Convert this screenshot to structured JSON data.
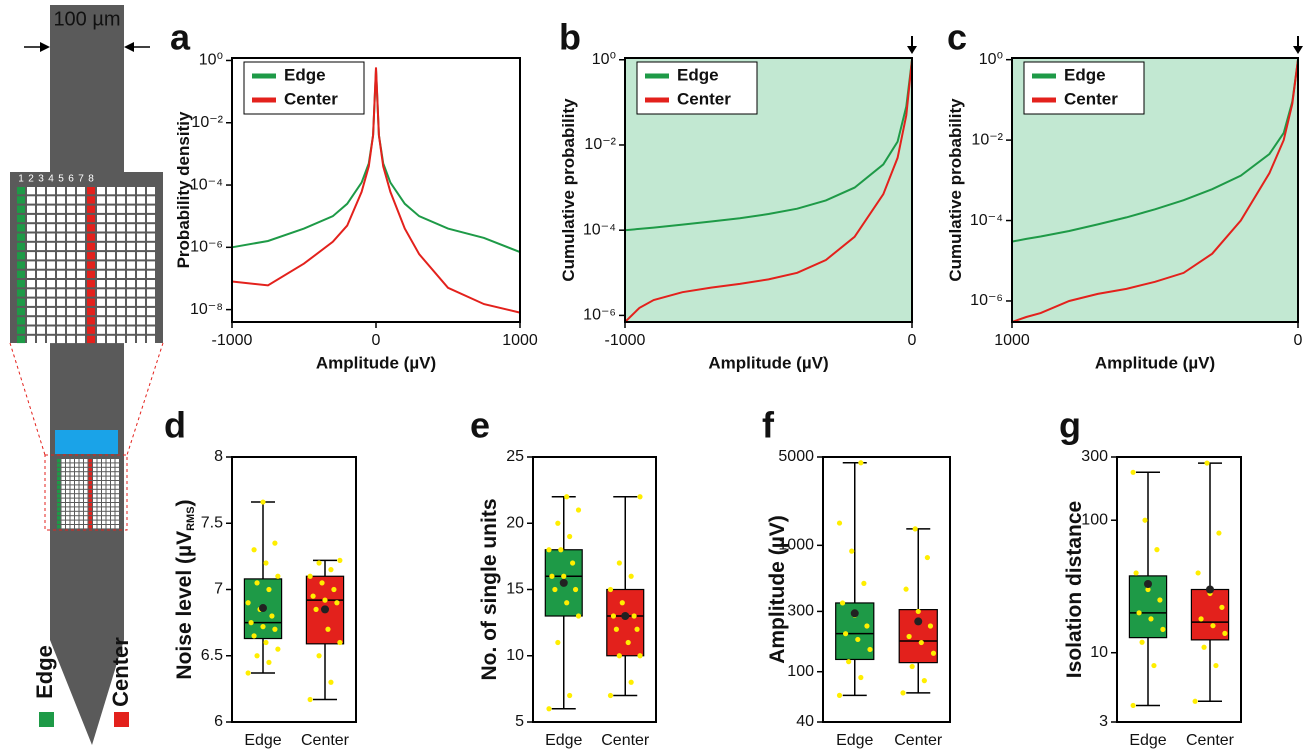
{
  "diagram": {
    "width_label": "100 µm",
    "columns": [
      "1",
      "2",
      "3",
      "4",
      "5",
      "6",
      "7",
      "8"
    ],
    "edge_label": "Edge",
    "center_label": "Center",
    "edge_color": "#1e9a47",
    "center_color": "#e3211c"
  },
  "chart_data": [
    {
      "type": "line",
      "panel": "a",
      "x_label": "Amplitude (µV)",
      "y_label": "Probability densitiy",
      "yscale": "log",
      "x": [
        -1000,
        -750,
        -500,
        -300,
        -200,
        -100,
        -50,
        -20,
        0,
        20,
        50,
        100,
        200,
        300,
        500,
        750,
        1000
      ],
      "series": [
        {
          "name": "Edge",
          "color": "#1e9a47",
          "values": [
            1e-06,
            1.6e-06,
            4e-06,
            1e-05,
            2.5e-05,
            0.00012,
            0.0005,
            0.004,
            0.5,
            0.004,
            0.0005,
            0.00012,
            2.5e-05,
            1e-05,
            4e-06,
            2e-06,
            7e-07
          ]
        },
        {
          "name": "Center",
          "color": "#e3211c",
          "values": [
            8e-08,
            6e-08,
            3e-07,
            1.5e-06,
            5e-06,
            6e-05,
            0.0004,
            0.004,
            0.6,
            0.004,
            0.0004,
            6e-05,
            4e-06,
            6e-07,
            5e-08,
            1.5e-08,
            8e-09
          ]
        }
      ],
      "xlim": [
        -1000,
        1000
      ],
      "xticks": [
        -1000,
        0,
        1000
      ],
      "ylim": [
        4e-09,
        1.2
      ],
      "yticks": [
        {
          "value": 1,
          "label": "10⁰"
        },
        {
          "value": 0.01,
          "label": "10⁻²"
        },
        {
          "value": 0.0001,
          "label": "10⁻⁴"
        },
        {
          "value": 1e-06,
          "label": "10⁻⁶"
        },
        {
          "value": 1e-08,
          "label": "10⁻⁸"
        }
      ]
    },
    {
      "type": "line",
      "panel": "b",
      "x_label": "Amplitude (µV)",
      "y_label": "Cumulative probability",
      "yscale": "log",
      "shade_color": "#c2e8d2",
      "x": [
        -1000,
        -950,
        -900,
        -800,
        -700,
        -600,
        -500,
        -400,
        -300,
        -200,
        -100,
        -50,
        -20,
        0
      ],
      "series": [
        {
          "name": "Edge",
          "color": "#1e9a47",
          "values": [
            0.0001,
            0.000107,
            0.000115,
            0.000135,
            0.00016,
            0.00019,
            0.00024,
            0.00032,
            0.0005,
            0.001,
            0.0035,
            0.012,
            0.08,
            1
          ]
        },
        {
          "name": "Center",
          "color": "#e3211c",
          "values": [
            7e-07,
            1.5e-06,
            2.3e-06,
            3.5e-06,
            4.5e-06,
            5.5e-06,
            7e-06,
            1e-05,
            2e-05,
            7e-05,
            0.0007,
            0.005,
            0.05,
            1
          ]
        }
      ],
      "xlim": [
        -1000,
        0
      ],
      "xticks": [
        -1000,
        0
      ],
      "ylim": [
        7e-07,
        1.1
      ],
      "yticks": [
        {
          "value": 1,
          "label": "10⁰"
        },
        {
          "value": 0.01,
          "label": "10⁻²"
        },
        {
          "value": 0.0001,
          "label": "10⁻⁴"
        },
        {
          "value": 1e-06,
          "label": "10⁻⁶"
        }
      ]
    },
    {
      "type": "line",
      "panel": "c",
      "x_label": "Amplitude (µV)",
      "y_label": "Cumulative probability",
      "yscale": "log",
      "shade_color": "#c2e8d2",
      "x": [
        1000,
        950,
        900,
        800,
        700,
        600,
        500,
        400,
        300,
        200,
        100,
        50,
        20,
        0
      ],
      "series": [
        {
          "name": "Edge",
          "color": "#1e9a47",
          "values": [
            3e-05,
            3.5e-05,
            4e-05,
            5.5e-05,
            8e-05,
            0.00012,
            0.00019,
            0.00032,
            0.0006,
            0.0013,
            0.0045,
            0.015,
            0.09,
            1
          ]
        },
        {
          "name": "Center",
          "color": "#e3211c",
          "values": [
            3e-07,
            4e-07,
            5e-07,
            1e-06,
            1.5e-06,
            2e-06,
            3e-06,
            5e-06,
            1.5e-05,
            0.0001,
            0.0015,
            0.01,
            0.08,
            1
          ]
        }
      ],
      "xlim": [
        1000,
        0
      ],
      "xticks": [
        1000,
        0
      ],
      "ylim": [
        3e-07,
        1.1
      ],
      "yticks": [
        {
          "value": 1,
          "label": "10⁰"
        },
        {
          "value": 0.01,
          "label": "10⁻²"
        },
        {
          "value": 0.0001,
          "label": "10⁻⁴"
        },
        {
          "value": 1e-06,
          "label": "10⁻⁶"
        }
      ]
    },
    {
      "type": "box",
      "panel": "d",
      "y_label": "Noise level (µV",
      "y_label_sub": "RMS",
      "y_label_end": ")",
      "categories": [
        "Edge",
        "Center"
      ],
      "point_color": "#ffee00",
      "boxes": [
        {
          "color": "#1e9a47",
          "min": 6.37,
          "q1": 6.63,
          "median": 6.75,
          "q3": 7.08,
          "max": 7.66,
          "mean": 6.86,
          "points": [
            6.37,
            6.45,
            6.5,
            6.55,
            6.6,
            6.65,
            6.7,
            6.72,
            6.75,
            6.8,
            6.85,
            6.9,
            7.0,
            7.05,
            7.1,
            7.2,
            7.3,
            7.35,
            7.66
          ]
        },
        {
          "color": "#e3211c",
          "min": 6.17,
          "q1": 6.59,
          "median": 6.92,
          "q3": 7.1,
          "max": 7.22,
          "mean": 6.85,
          "points": [
            6.17,
            6.3,
            6.5,
            6.6,
            6.7,
            6.85,
            6.9,
            6.92,
            6.95,
            7.0,
            7.05,
            7.1,
            7.15,
            7.2,
            7.22
          ]
        }
      ],
      "ylim": [
        6,
        8
      ],
      "yticks": [
        6,
        6.5,
        7,
        7.5,
        8
      ]
    },
    {
      "type": "box",
      "panel": "e",
      "y_label": "No. of single units",
      "categories": [
        "Edge",
        "Center"
      ],
      "point_color": "#ffee00",
      "boxes": [
        {
          "color": "#1e9a47",
          "min": 6,
          "q1": 13,
          "median": 16,
          "q3": 18,
          "max": 22,
          "mean": 15.5,
          "points": [
            6,
            7,
            11,
            13,
            14,
            15,
            15,
            16,
            16,
            17,
            18,
            18,
            19,
            20,
            21,
            22
          ]
        },
        {
          "color": "#e3211c",
          "min": 7,
          "q1": 10,
          "median": 13,
          "q3": 15,
          "max": 22,
          "mean": 13,
          "points": [
            7,
            8,
            10,
            10,
            11,
            12,
            12,
            13,
            13,
            13,
            14,
            15,
            16,
            17,
            22
          ]
        }
      ],
      "ylim": [
        5,
        25
      ],
      "yticks": [
        5,
        10,
        15,
        20,
        25
      ]
    },
    {
      "type": "box",
      "panel": "f",
      "y_label": "Amplitude (µV)",
      "yscale": "log",
      "categories": [
        "Edge",
        "Center"
      ],
      "point_color": "#ffee00",
      "boxes": [
        {
          "color": "#1e9a47",
          "min": 65,
          "q1": 125,
          "median": 200,
          "q3": 350,
          "max": 4500,
          "mean": 290,
          "points": [
            65,
            90,
            120,
            150,
            180,
            200,
            230,
            280,
            350,
            500,
            900,
            1500,
            4500
          ]
        },
        {
          "color": "#e3211c",
          "min": 68,
          "q1": 118,
          "median": 175,
          "q3": 310,
          "max": 1350,
          "mean": 250,
          "points": [
            68,
            85,
            110,
            140,
            170,
            190,
            230,
            300,
            450,
            800,
            1350
          ]
        }
      ],
      "ylim": [
        40,
        5000
      ],
      "yticks": [
        40,
        100,
        300,
        1000,
        5000
      ]
    },
    {
      "type": "box",
      "panel": "g",
      "y_label": "Isolation distance",
      "yscale": "log",
      "categories": [
        "Edge",
        "Center"
      ],
      "point_color": "#ffee00",
      "boxes": [
        {
          "color": "#1e9a47",
          "min": 4,
          "q1": 13,
          "median": 20,
          "q3": 38,
          "max": 230,
          "mean": 33,
          "points": [
            4,
            8,
            12,
            15,
            18,
            20,
            25,
            30,
            40,
            60,
            100,
            230
          ]
        },
        {
          "color": "#e3211c",
          "min": 4.3,
          "q1": 12.5,
          "median": 17,
          "q3": 30,
          "max": 270,
          "mean": 30,
          "points": [
            4.3,
            8,
            11,
            14,
            16,
            18,
            22,
            28,
            40,
            80,
            270
          ]
        }
      ],
      "ylim": [
        3,
        300
      ],
      "yticks": [
        3,
        10,
        100,
        300
      ]
    }
  ]
}
